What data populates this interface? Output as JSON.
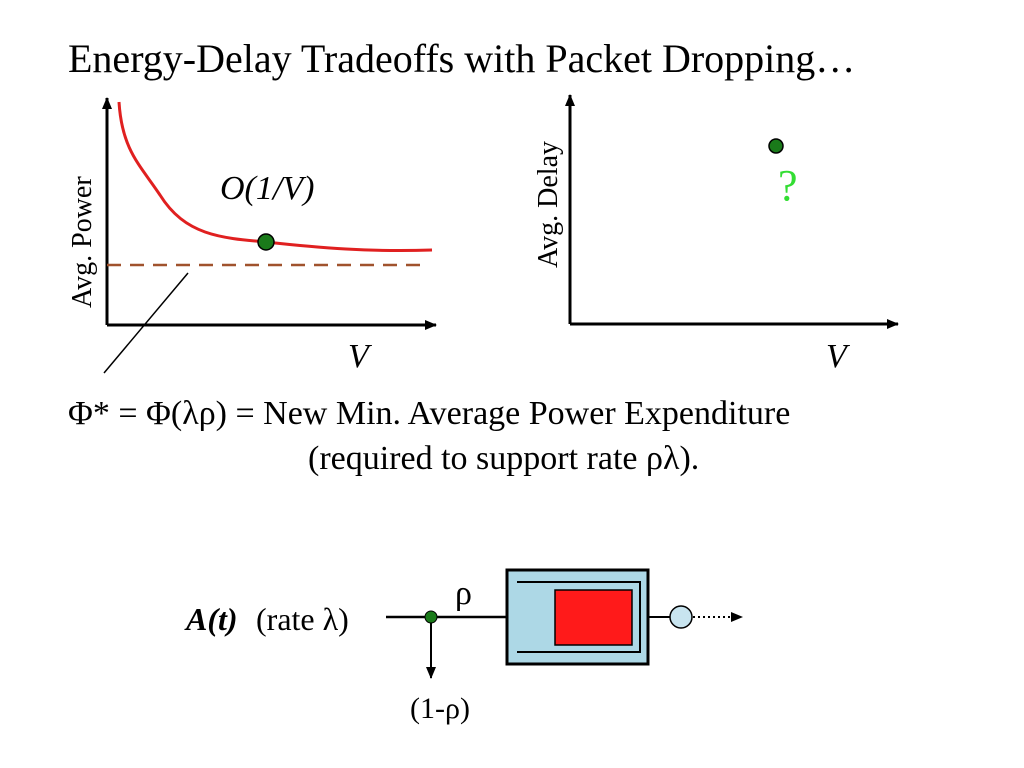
{
  "title": "Energy-Delay Tradeoffs with Packet Dropping…",
  "left_plot": {
    "ylabel": "Avg. Power",
    "xlabel": "V",
    "curve_label": "O(1/V)"
  },
  "right_plot": {
    "ylabel": "Avg. Delay",
    "xlabel": "V",
    "point_label": "?"
  },
  "equation": {
    "line1": "Φ* = Φ(λρ) = New Min. Average Power Expenditure",
    "line2": "(required to support rate ρλ)."
  },
  "queue_diagram": {
    "arrival_label": "A(t)",
    "rate_label": "(rate λ)",
    "admit_label": "ρ",
    "drop_label": "(1-ρ)"
  },
  "colors": {
    "curve": "#e02020",
    "dashed_line": "#a0522d",
    "point": "#1a7a1a",
    "question": "#33dd33",
    "queue_box": "#add8e6",
    "queue_content": "#ff1a1a",
    "server": "#c8e4ef"
  }
}
